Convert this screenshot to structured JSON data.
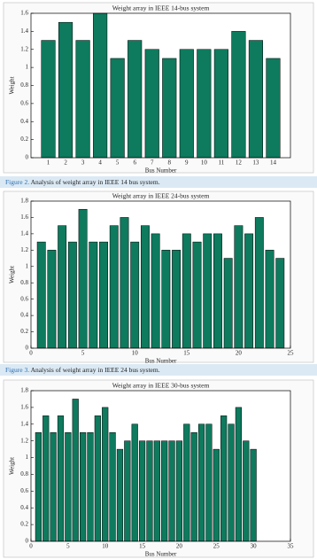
{
  "chart_data": [
    {
      "type": "bar",
      "title": "Weight array in IEEE 14-bus system",
      "x_label": "Bus Number",
      "y_label": "Weight",
      "x": [
        1,
        2,
        3,
        4,
        5,
        6,
        7,
        8,
        9,
        10,
        11,
        12,
        13,
        14
      ],
      "values": [
        1.3,
        1.5,
        1.3,
        1.6,
        1.1,
        1.3,
        1.2,
        1.1,
        1.2,
        1.2,
        1.2,
        1.4,
        1.3,
        1.1
      ],
      "color": "#0e7a5e",
      "xlim": [
        0,
        15
      ],
      "xticks": [
        1,
        2,
        3,
        4,
        5,
        6,
        7,
        8,
        9,
        10,
        11,
        12,
        13,
        14
      ],
      "ylim": [
        0,
        1.6
      ],
      "yticks": [
        0,
        0.2,
        0.4,
        0.6,
        0.8,
        1,
        1.2,
        1.4,
        1.6
      ]
    },
    {
      "type": "bar",
      "title": "Weight array in IEEE 24-bus system",
      "x_label": "Bus Number",
      "y_label": "Weight",
      "x": [
        1,
        2,
        3,
        4,
        5,
        6,
        7,
        8,
        9,
        10,
        11,
        12,
        13,
        14,
        15,
        16,
        17,
        18,
        19,
        20,
        21,
        22,
        23,
        24
      ],
      "values": [
        1.3,
        1.2,
        1.5,
        1.3,
        1.7,
        1.3,
        1.3,
        1.5,
        1.6,
        1.3,
        1.5,
        1.4,
        1.2,
        1.2,
        1.4,
        1.3,
        1.4,
        1.4,
        1.1,
        1.5,
        1.4,
        1.6,
        1.2,
        1.1
      ],
      "color": "#0e7a5e",
      "xlim": [
        0,
        25
      ],
      "xticks": [
        0,
        5,
        10,
        15,
        20,
        25
      ],
      "ylim": [
        0,
        1.8
      ],
      "yticks": [
        0,
        0.2,
        0.4,
        0.6,
        0.8,
        1,
        1.2,
        1.4,
        1.6,
        1.8
      ]
    },
    {
      "type": "bar",
      "title": "Weight array in IEEE 30-bus system",
      "x_label": "Bus Number",
      "y_label": "Weight",
      "x": [
        1,
        2,
        3,
        4,
        5,
        6,
        7,
        8,
        9,
        10,
        11,
        12,
        13,
        14,
        15,
        16,
        17,
        18,
        19,
        20,
        21,
        22,
        23,
        24,
        25,
        26,
        27,
        28,
        29,
        30
      ],
      "values": [
        1.3,
        1.5,
        1.3,
        1.5,
        1.3,
        1.7,
        1.3,
        1.3,
        1.5,
        1.6,
        1.3,
        1.1,
        1.2,
        1.4,
        1.2,
        1.2,
        1.2,
        1.2,
        1.2,
        1.2,
        1.4,
        1.3,
        1.4,
        1.4,
        1.1,
        1.5,
        1.4,
        1.6,
        1.2,
        1.1
      ],
      "color": "#0e7a5e",
      "xlim": [
        0,
        35
      ],
      "xticks": [
        0,
        5,
        10,
        15,
        20,
        25,
        30,
        35
      ],
      "ylim": [
        0,
        1.8
      ],
      "yticks": [
        0,
        0.2,
        0.4,
        0.6,
        0.8,
        1,
        1.2,
        1.4,
        1.6,
        1.8
      ]
    }
  ],
  "captions": [
    {
      "label": "Figure 2.",
      "text": "Analysis of weight array in IEEE 14 bus system."
    },
    {
      "label": "Figure 3.",
      "text": "Analysis of weight array in IEEE 24 bus system."
    }
  ]
}
